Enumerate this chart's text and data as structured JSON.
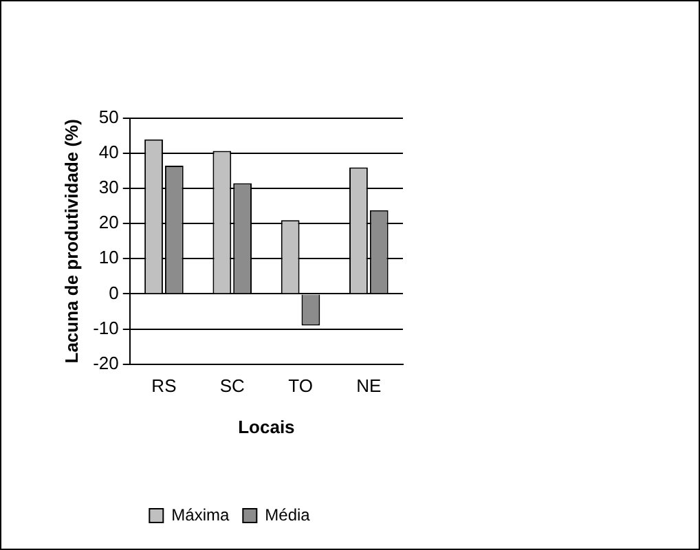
{
  "chart_data": {
    "type": "bar",
    "xlabel": "Locais",
    "ylabel": "Lacuna de produtividade (%)",
    "categories": [
      "RS",
      "SC",
      "TO",
      "NE"
    ],
    "series": [
      {
        "name": "Máxima",
        "color": "#c0c0c0",
        "values": [
          44,
          40.7,
          21,
          36
        ]
      },
      {
        "name": "Média",
        "color": "#8c8c8c",
        "values": [
          36.5,
          31.5,
          -9,
          23.8
        ]
      }
    ],
    "ylim": [
      -20,
      50
    ],
    "yticks": [
      -20,
      -10,
      0,
      10,
      20,
      30,
      40,
      50
    ],
    "grid": "y",
    "legend": "bottom"
  }
}
